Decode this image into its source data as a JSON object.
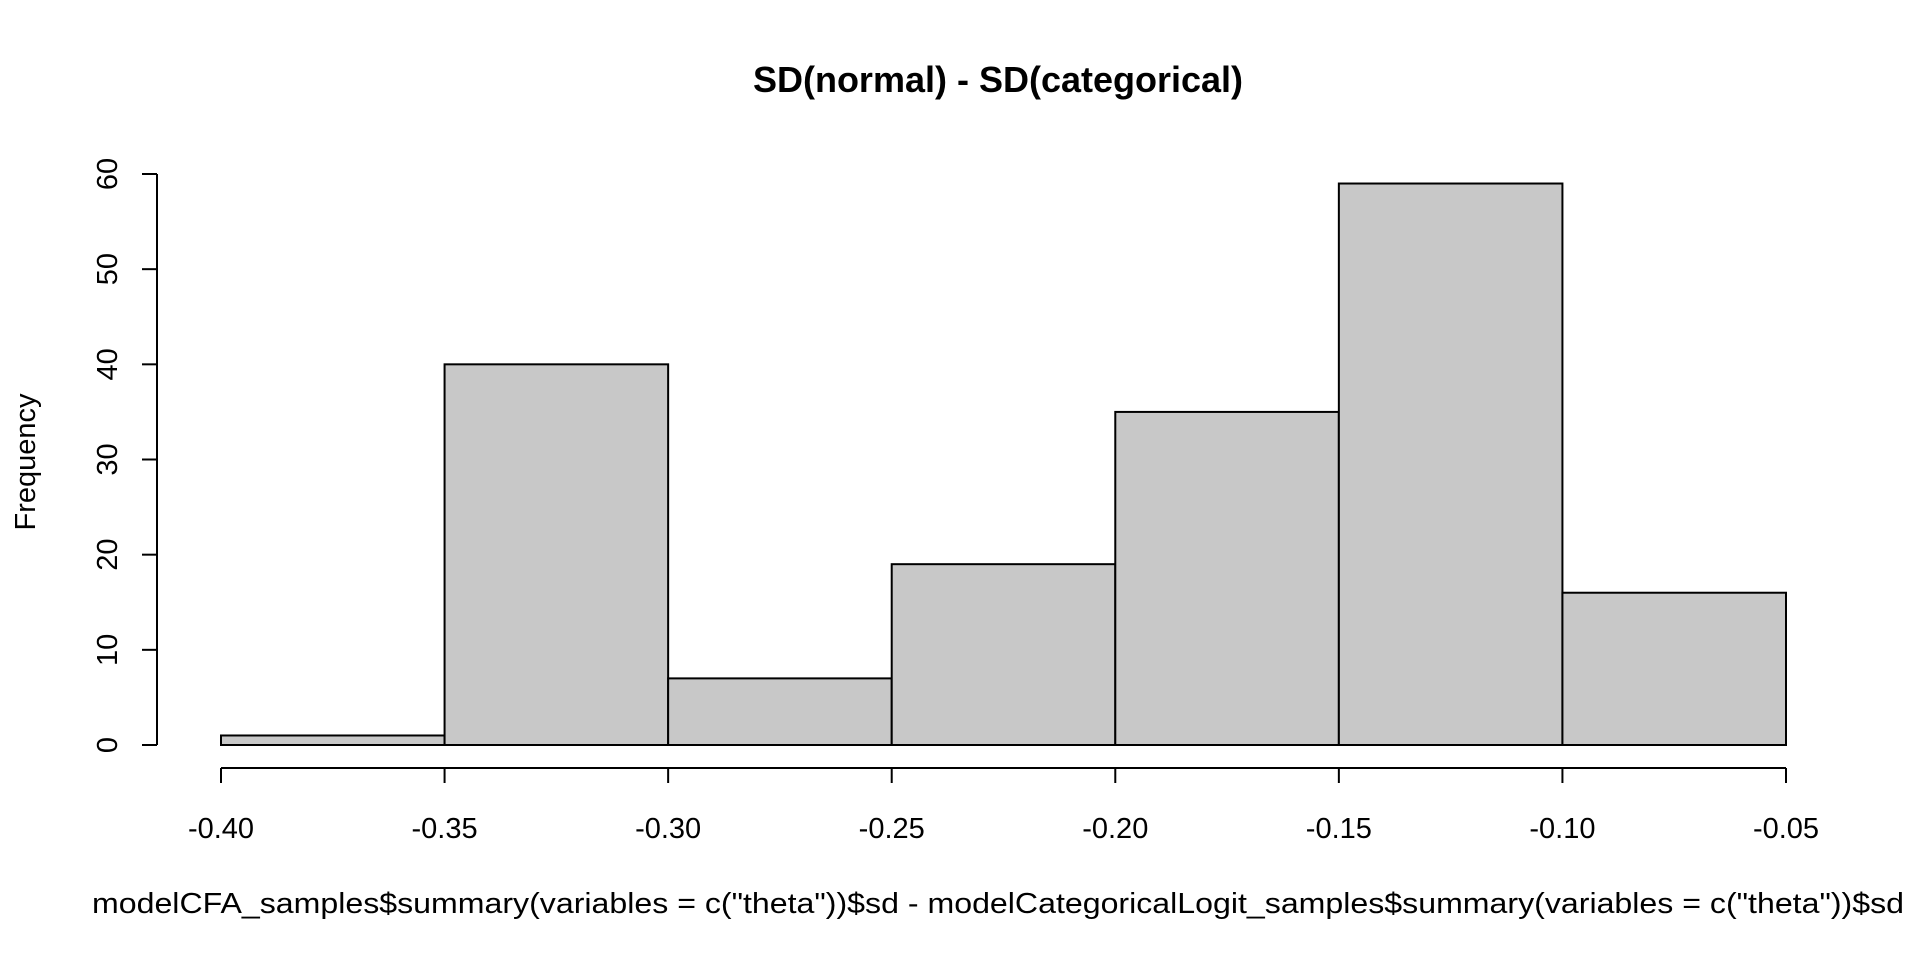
{
  "chart_data": {
    "type": "bar",
    "subtype": "histogram",
    "title": "SD(normal) - SD(categorical)",
    "xlabel": "modelCFA_samples$summary(variables = c(\"theta\"))$sd - modelCategoricalLogit_samples$summary(variables = c(\"theta\"))$sd",
    "ylabel": "Frequency",
    "bins": [
      {
        "start": -0.4,
        "end": -0.35,
        "count": 1
      },
      {
        "start": -0.35,
        "end": -0.3,
        "count": 40
      },
      {
        "start": -0.3,
        "end": -0.25,
        "count": 7
      },
      {
        "start": -0.25,
        "end": -0.2,
        "count": 19
      },
      {
        "start": -0.2,
        "end": -0.15,
        "count": 35
      },
      {
        "start": -0.15,
        "end": -0.1,
        "count": 59
      },
      {
        "start": -0.1,
        "end": -0.05,
        "count": 16
      }
    ],
    "xlim": [
      -0.4,
      -0.05
    ],
    "ylim": [
      0,
      60
    ],
    "x_ticks": [
      -0.4,
      -0.35,
      -0.3,
      -0.25,
      -0.2,
      -0.15,
      -0.1,
      -0.05
    ],
    "x_tick_labels": [
      "-0.40",
      "-0.35",
      "-0.30",
      "-0.25",
      "-0.20",
      "-0.15",
      "-0.10",
      "-0.05"
    ],
    "y_ticks": [
      0,
      10,
      20,
      30,
      40,
      50,
      60
    ],
    "y_tick_labels": [
      "0",
      "10",
      "20",
      "30",
      "40",
      "50",
      "60"
    ],
    "grid": false,
    "legend": "none",
    "bar_color": "#c8c8c8",
    "edge_color": "#000000"
  }
}
